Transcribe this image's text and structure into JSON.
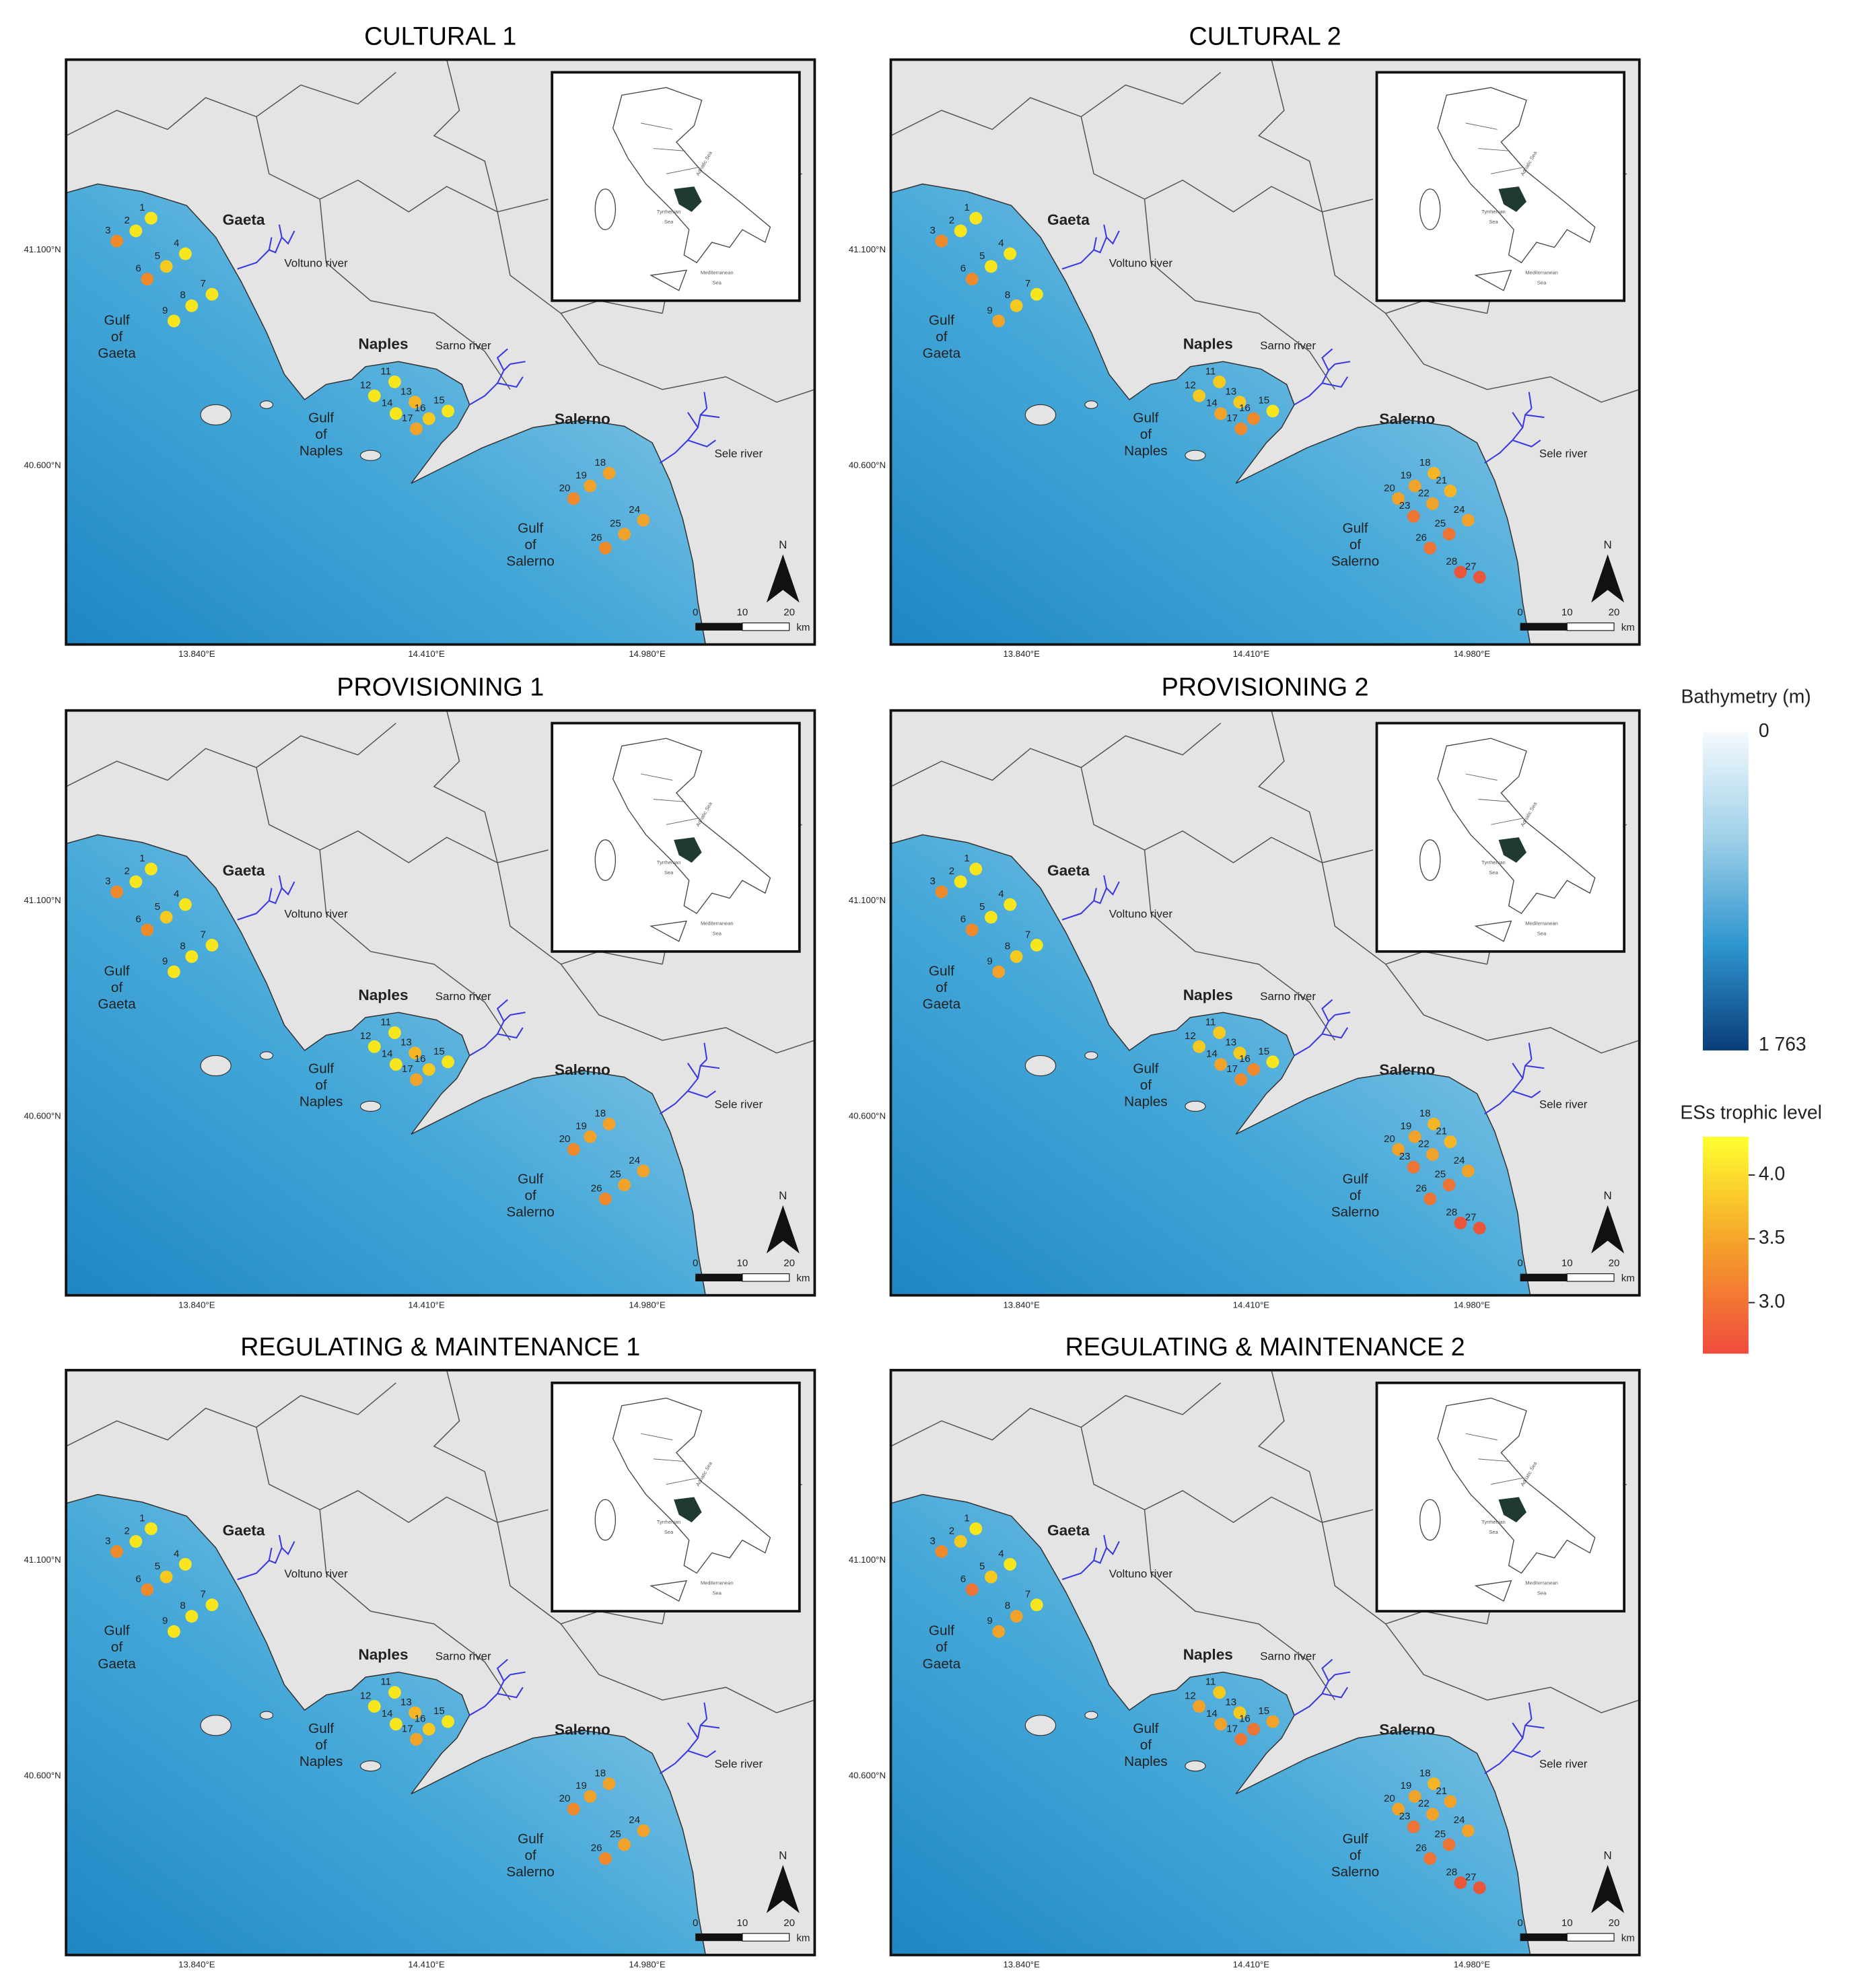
{
  "panels": [
    {
      "title": "CULTURAL 1",
      "stations": [
        "1",
        "2",
        "3",
        "4",
        "5",
        "6",
        "7",
        "8",
        "9",
        "11",
        "12",
        "13",
        "14",
        "15",
        "16",
        "17",
        "18",
        "19",
        "20",
        "24",
        "25",
        "26"
      ],
      "colors": [
        "#f7e51e",
        "#f7e51e",
        "#ef8a2c",
        "#f7e51e",
        "#f5c91f",
        "#ef8a2c",
        "#f7e51e",
        "#f7e51e",
        "#f7e51e",
        "#f7e51e",
        "#f7e51e",
        "#f5b524",
        "#f7e51e",
        "#f7e51e",
        "#f5c91f",
        "#f0a22a",
        "#f0a22a",
        "#f0a22a",
        "#ef8a2c",
        "#f0a22a",
        "#f0a22a",
        "#ef8a2c"
      ]
    },
    {
      "title": "CULTURAL 2",
      "stations": [
        "1",
        "2",
        "3",
        "4",
        "5",
        "6",
        "7",
        "8",
        "9",
        "11",
        "12",
        "13",
        "14",
        "15",
        "16",
        "17",
        "18",
        "19",
        "20",
        "21",
        "22",
        "23",
        "24",
        "25",
        "26",
        "27",
        "28"
      ],
      "colors": [
        "#f7e51e",
        "#f7e51e",
        "#ef8a2c",
        "#f7e51e",
        "#f7e51e",
        "#ef8a2c",
        "#f7e51e",
        "#f5c91f",
        "#f0a22a",
        "#f5c91f",
        "#f5c91f",
        "#f5c91f",
        "#f0a22a",
        "#f7e51e",
        "#ef8a2c",
        "#ef8a2c",
        "#f5b524",
        "#f0a22a",
        "#f0a22a",
        "#f5b524",
        "#f0a22a",
        "#ec7434",
        "#f0a22a",
        "#ec7434",
        "#ec7434",
        "#e9563a",
        "#e9563a"
      ]
    },
    {
      "title": "PROVISIONING 1",
      "stations": [
        "1",
        "2",
        "3",
        "4",
        "5",
        "6",
        "7",
        "8",
        "9",
        "11",
        "12",
        "13",
        "14",
        "15",
        "16",
        "17",
        "18",
        "19",
        "20",
        "24",
        "25",
        "26"
      ],
      "colors": [
        "#f7e51e",
        "#f7e51e",
        "#ef8a2c",
        "#f7e51e",
        "#f5c91f",
        "#ef8a2c",
        "#f7e51e",
        "#f7e51e",
        "#f7e51e",
        "#f7e51e",
        "#f7e51e",
        "#f5b524",
        "#f7e51e",
        "#f7e51e",
        "#f5c91f",
        "#f0a22a",
        "#f0a22a",
        "#f0a22a",
        "#ef8a2c",
        "#f0a22a",
        "#f0a22a",
        "#ef8a2c"
      ]
    },
    {
      "title": "PROVISIONING 2",
      "stations": [
        "1",
        "2",
        "3",
        "4",
        "5",
        "6",
        "7",
        "8",
        "9",
        "11",
        "12",
        "13",
        "14",
        "15",
        "16",
        "17",
        "18",
        "19",
        "20",
        "21",
        "22",
        "23",
        "24",
        "25",
        "26",
        "27",
        "28"
      ],
      "colors": [
        "#f7e51e",
        "#f7e51e",
        "#ef8a2c",
        "#f7e51e",
        "#f7e51e",
        "#ef8a2c",
        "#f7e51e",
        "#f5c91f",
        "#f0a22a",
        "#f5c91f",
        "#f5c91f",
        "#f5c91f",
        "#f0a22a",
        "#f7e51e",
        "#ef8a2c",
        "#ef8a2c",
        "#f5b524",
        "#f0a22a",
        "#f0a22a",
        "#f5b524",
        "#f0a22a",
        "#ec7434",
        "#f0a22a",
        "#ec7434",
        "#ec7434",
        "#e9563a",
        "#e9563a"
      ]
    },
    {
      "title": "REGULATING & MAINTENANCE 1",
      "stations": [
        "1",
        "2",
        "3",
        "4",
        "5",
        "6",
        "7",
        "8",
        "9",
        "11",
        "12",
        "13",
        "14",
        "15",
        "16",
        "17",
        "18",
        "19",
        "20",
        "24",
        "25",
        "26"
      ],
      "colors": [
        "#f7e51e",
        "#f7e51e",
        "#ef8a2c",
        "#f7e51e",
        "#f5c91f",
        "#ef8a2c",
        "#f7e51e",
        "#f7e51e",
        "#f7e51e",
        "#f7e51e",
        "#f7e51e",
        "#f5b524",
        "#f7e51e",
        "#f7e51e",
        "#f5c91f",
        "#f0a22a",
        "#f0a22a",
        "#f0a22a",
        "#ef8a2c",
        "#f0a22a",
        "#f0a22a",
        "#ef8a2c"
      ]
    },
    {
      "title": "REGULATING & MAINTENANCE 2",
      "stations": [
        "1",
        "2",
        "3",
        "4",
        "5",
        "6",
        "7",
        "8",
        "9",
        "11",
        "12",
        "13",
        "14",
        "15",
        "16",
        "17",
        "18",
        "19",
        "20",
        "21",
        "22",
        "23",
        "24",
        "25",
        "26",
        "27",
        "28"
      ],
      "colors": [
        "#f7e51e",
        "#f5c91f",
        "#ef8a2c",
        "#f7e51e",
        "#f5c91f",
        "#ec7434",
        "#f7e51e",
        "#f0a22a",
        "#f0a22a",
        "#f5c91f",
        "#f0a22a",
        "#f5c91f",
        "#f0a22a",
        "#f0a22a",
        "#ec7434",
        "#ec7434",
        "#f5b524",
        "#f0a22a",
        "#f0a22a",
        "#f0a22a",
        "#f0a22a",
        "#ec7434",
        "#f0a22a",
        "#ec7434",
        "#ec7434",
        "#e9563a",
        "#e9563a"
      ]
    }
  ],
  "map_labels": {
    "gaeta": "Gaeta",
    "naples": "Naples",
    "salerno": "Salerno",
    "volturno": "Voltuno river",
    "sarno": "Sarno river",
    "sele": "Sele river",
    "gulf_gaeta": [
      "Gulf",
      "of",
      "Gaeta"
    ],
    "gulf_naples": [
      "Gulf",
      "of",
      "Naples"
    ],
    "gulf_salerno": [
      "Gulf",
      "of",
      "Salerno"
    ],
    "lat_ticks": [
      "41.100°N",
      "40.600°N"
    ],
    "lon_ticks": [
      "13.840°E",
      "14.410°E",
      "14.980°E"
    ],
    "north": "N",
    "scale": [
      "0",
      "10",
      "20",
      "km"
    ],
    "inset": [
      "Adriatic Sea",
      "Tyrrhenian",
      "Sea",
      "Mediterranean",
      "Sea"
    ]
  },
  "legend": {
    "bathymetry": {
      "title": "Bathymetry (m)",
      "range": [
        0,
        1763
      ],
      "ticks": [
        {
          "value": 0,
          "label": "0"
        },
        {
          "value": 1763,
          "label": "1 763"
        }
      ],
      "colors": [
        "#f4f9fd",
        "#9fd0e8",
        "#2f96cf",
        "#0a3d7a"
      ]
    },
    "trophic": {
      "title": "ESs trophic level",
      "range": [
        2.6,
        4.3
      ],
      "ticks": [
        {
          "value": 4,
          "label": "4.0"
        },
        {
          "value": 3.5,
          "label": "3.5"
        },
        {
          "value": 3,
          "label": "3.0"
        }
      ],
      "colors": [
        "#ffff30",
        "#f5a02a",
        "#f04b3e"
      ]
    }
  }
}
